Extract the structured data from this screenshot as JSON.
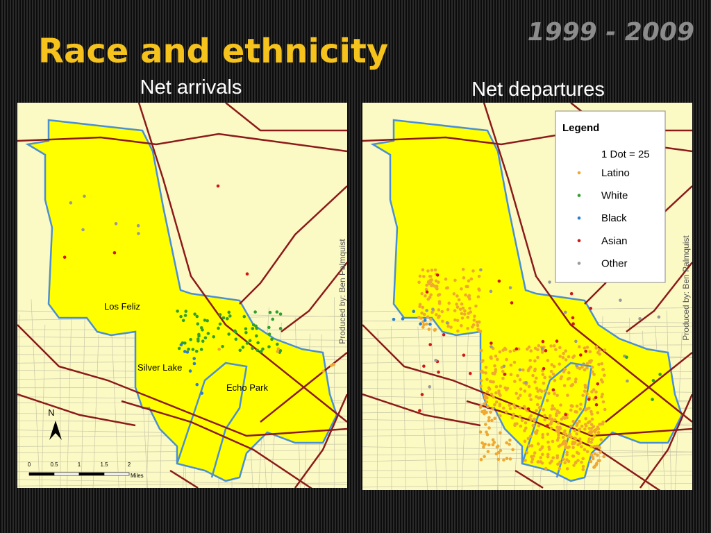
{
  "header": {
    "title": "Race and ethnicity",
    "period": "1999 - 2009"
  },
  "maps": [
    {
      "title": "Net arrivals",
      "places": [
        "Los Feliz",
        "Silver Lake",
        "Echo Park"
      ],
      "north": "N",
      "scale": {
        "ticks": [
          "0",
          "0.5",
          "1",
          "1.5",
          "2"
        ],
        "unit": "Miles"
      },
      "credit": "Produced by: Ben Palmquist"
    },
    {
      "title": "Net departures",
      "credit": "Produced by: Ben Palmquist",
      "legend": {
        "title": "Legend",
        "note": "1 Dot = 25",
        "items": [
          {
            "label": "Latino",
            "color": "#f0a830"
          },
          {
            "label": "White",
            "color": "#2ea02e"
          },
          {
            "label": "Black",
            "color": "#2a7fd0"
          },
          {
            "label": "Asian",
            "color": "#d01818"
          },
          {
            "label": "Other",
            "color": "#999999"
          }
        ]
      }
    }
  ]
}
